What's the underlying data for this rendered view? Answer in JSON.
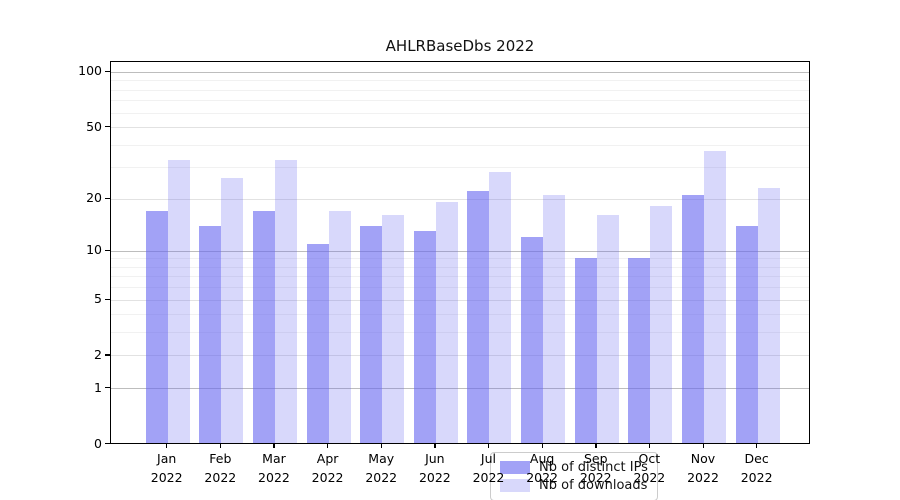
{
  "title": "AHLRBaseDbs 2022",
  "colors": {
    "bar_base": "#6464f0",
    "bar_alpha_ips": 0.6,
    "bar_alpha_downloads": 0.25,
    "grid_decade": "#bdbdbd",
    "grid_major": "#e2e2e2",
    "grid_minor": "#f1f1f1",
    "axis": "#000000",
    "background": "#ffffff"
  },
  "chart_data": {
    "type": "bar",
    "title": "AHLRBaseDbs 2022",
    "categories": [
      "Jan 2022",
      "Feb 2022",
      "Mar 2022",
      "Apr 2022",
      "May 2022",
      "Jun 2022",
      "Jul 2022",
      "Aug 2022",
      "Sep 2022",
      "Oct 2022",
      "Nov 2022",
      "Dec 2022"
    ],
    "series": [
      {
        "name": "Nb of distinct IPs",
        "values": [
          17,
          14,
          17,
          11,
          14,
          13,
          22,
          12,
          9,
          9,
          21,
          14
        ]
      },
      {
        "name": "Nb of downloads",
        "values": [
          33,
          26,
          33,
          17,
          16,
          19,
          28,
          21,
          16,
          18,
          37,
          23
        ]
      }
    ],
    "yscale": "symlog ln(1+x)",
    "yticks": [
      0,
      1,
      2,
      5,
      10,
      20,
      50,
      100
    ],
    "ytick_labels": [
      "0",
      "1",
      "2",
      "5",
      "10",
      "20",
      "50",
      "100"
    ],
    "grid_mid_major": [
      2,
      5,
      20,
      50
    ],
    "grid_decade": [
      1,
      10,
      100
    ],
    "grid_minor": [
      3,
      4,
      6,
      7,
      8,
      9,
      30,
      40,
      60,
      70,
      80,
      90
    ],
    "ylim": [
      0,
      114
    ],
    "xlabel": "",
    "ylabel": "",
    "grid": true,
    "legend_position": "lower center"
  }
}
